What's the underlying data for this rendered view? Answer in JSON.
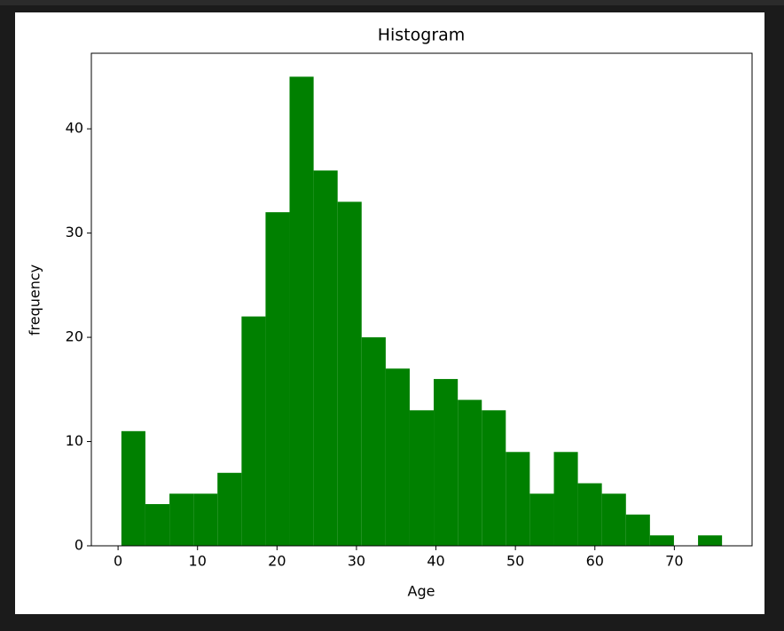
{
  "chart_data": {
    "type": "histogram",
    "title": "Histogram",
    "x_label": "Age",
    "y_label": "frequency",
    "bins": [
      0.42,
      3.44,
      6.47,
      9.49,
      12.51,
      15.54,
      18.56,
      21.58,
      24.61,
      27.63,
      30.65,
      33.68,
      36.7,
      39.72,
      42.75,
      45.77,
      48.79,
      51.81,
      54.84,
      57.86,
      60.88,
      63.91,
      66.93,
      69.95,
      72.98,
      76.0
    ],
    "values": [
      11,
      4,
      5,
      5,
      7,
      22,
      32,
      45,
      36,
      33,
      20,
      17,
      13,
      16,
      14,
      13,
      9,
      5,
      9,
      6,
      5,
      3,
      1,
      0,
      1
    ],
    "color": "#008000",
    "xlim": [
      -3.36,
      79.78
    ],
    "xticks": [
      0,
      10,
      20,
      30,
      40,
      50,
      60,
      70
    ],
    "ylim": [
      0,
      47.25
    ],
    "yticks": [
      0,
      10,
      20,
      30,
      40
    ],
    "grid": false
  }
}
